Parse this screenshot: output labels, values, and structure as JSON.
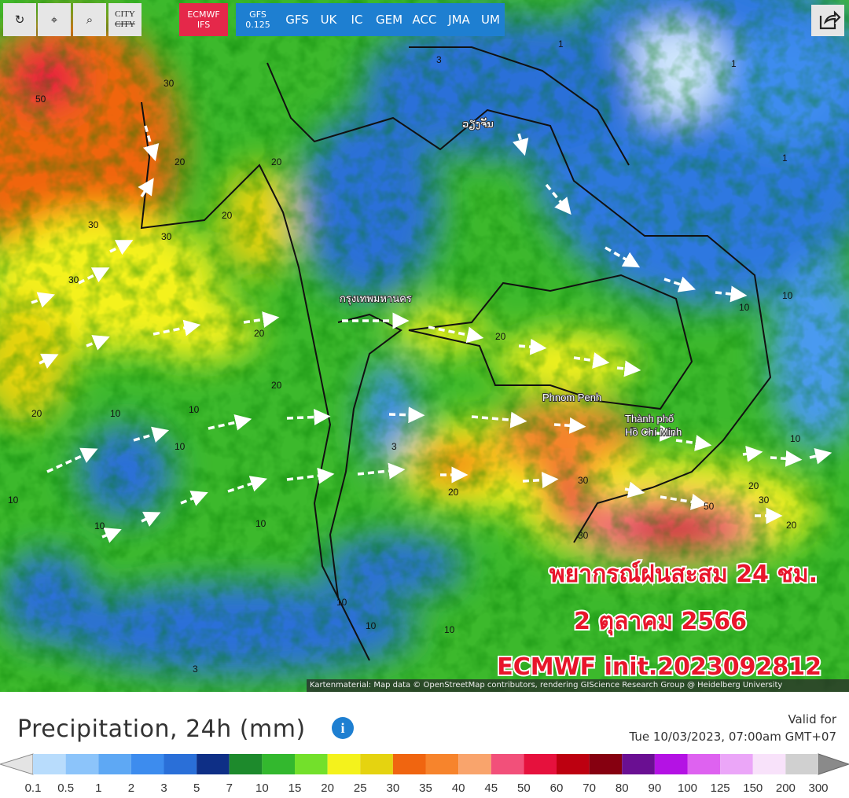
{
  "toolbar": {
    "city": [
      "CITY",
      "CITY"
    ],
    "models": [
      {
        "label": "ECMWF",
        "sub": "IFS"
      },
      {
        "label": "GFS",
        "sub": "0.125"
      },
      {
        "label": "GFS"
      },
      {
        "label": "UK"
      },
      {
        "label": "IC"
      },
      {
        "label": "GEM"
      },
      {
        "label": "ACC"
      },
      {
        "label": "JMA"
      },
      {
        "label": "UM"
      }
    ]
  },
  "map": {
    "cities": [
      "กรุงเทพมหานคร",
      "ວຽງຈັນ",
      "Phnom Penh",
      "Thành phố",
      "Hồ Chí Minh"
    ],
    "contour_labels": [
      "50",
      "30",
      "20",
      "30",
      "30",
      "30",
      "20",
      "20",
      "20",
      "20",
      "20",
      "10",
      "10",
      "10",
      "10",
      "10",
      "10",
      "10",
      "3",
      "20",
      "20",
      "30",
      "30",
      "50",
      "30",
      "20",
      "10",
      "10",
      "1",
      "1",
      "3",
      "1",
      "20",
      "10",
      "3",
      "10",
      "10"
    ],
    "overlay": [
      "พยากรณ์ฝนสะสม 24 ชม.",
      "2 ตุลาคม 2566",
      "ECMWF init.2023092812"
    ],
    "attribution": "Kartenmaterial: Map data © OpenStreetMap contributors, rendering GIScience Research Group @ Heidelberg University"
  },
  "legend": {
    "title": "Precipitation, 24h (mm)",
    "valid_label": "Valid for",
    "valid_time": "Tue 10/03/2023, 07:00am GMT+07",
    "labels": [
      "0.1",
      "0.5",
      "1",
      "2",
      "3",
      "5",
      "7",
      "10",
      "15",
      "20",
      "25",
      "30",
      "35",
      "40",
      "45",
      "50",
      "60",
      "70",
      "80",
      "90",
      "100",
      "125",
      "150",
      "200",
      "300"
    ],
    "colors": [
      "#b8dcfc",
      "#8cc4fa",
      "#5ea8f4",
      "#3d8cee",
      "#2a6fd8",
      "#0e2f86",
      "#1d8a2c",
      "#33b82e",
      "#73e02b",
      "#f4f21c",
      "#e5d310",
      "#f06510",
      "#f7842c",
      "#f9a46c",
      "#f2507a",
      "#e6113d",
      "#bd0010",
      "#860010",
      "#6a0f92",
      "#b412e4",
      "#de62f0",
      "#eba6f8",
      "#f8e2fa",
      "#d0d0d0"
    ]
  }
}
